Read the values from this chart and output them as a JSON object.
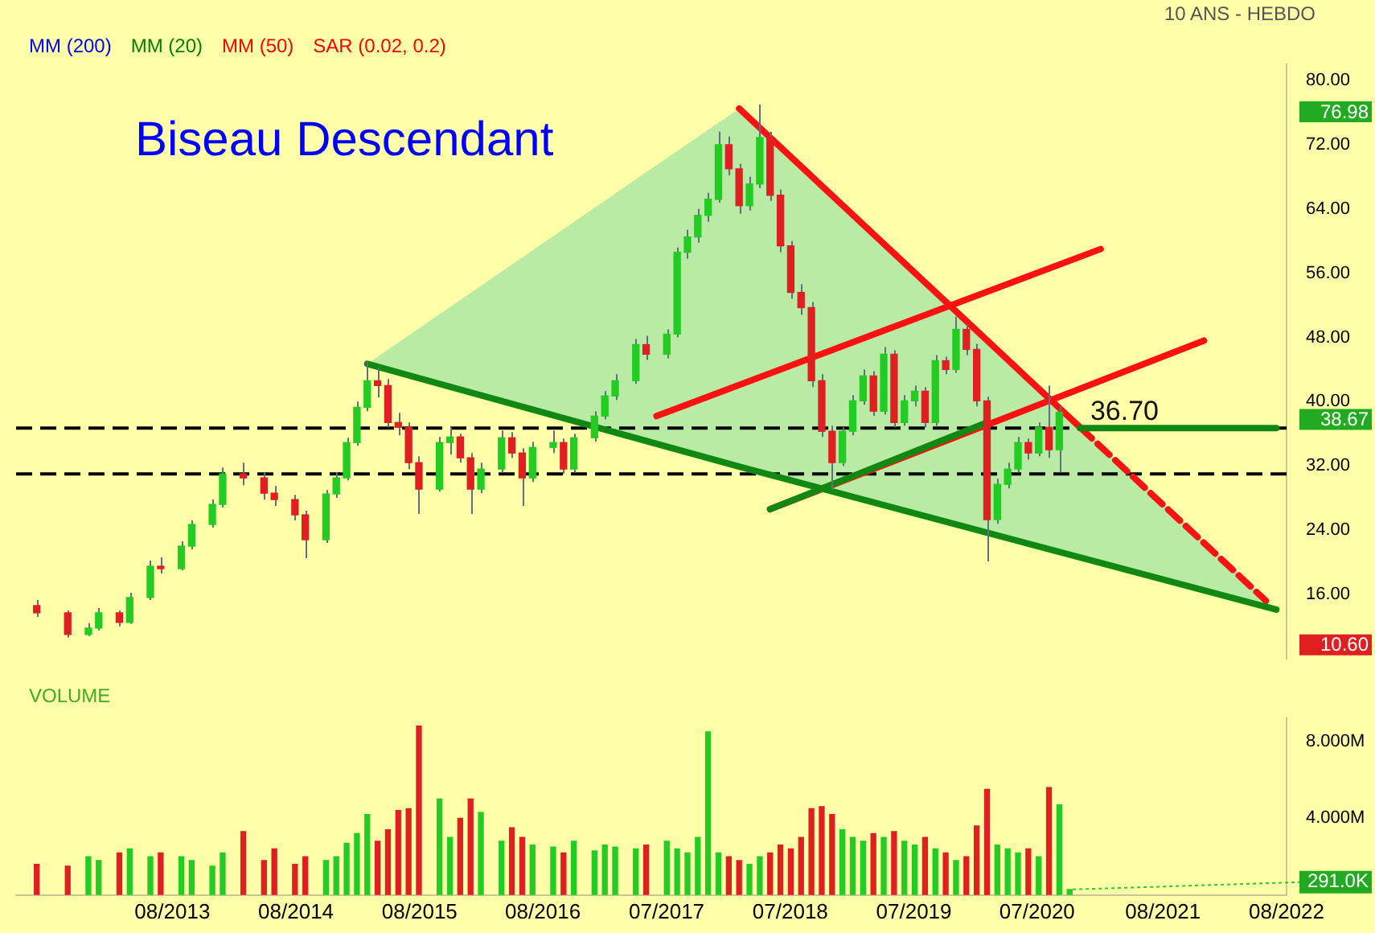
{
  "chart_data": [
    {
      "type": "candlestick",
      "title": "Biseau Descendant",
      "annotations": [
        "MM (200)",
        "MM (20)",
        "MM (50)",
        "SAR (0.02, 0.2)",
        "10 ANS - HEBDO",
        {
          "text": "36.70",
          "x": "2021-01",
          "y": 36.7
        }
      ],
      "y2lim": [
        8,
        82
      ],
      "y2ticks": [
        76.98,
        38.67,
        {
          "value": 10.6,
          "label": "10.60"
        }
      ],
      "x": [
        "2012-07",
        "2012-10",
        "2012-12",
        "2013-01",
        "2013-03",
        "2013-04",
        "2013-06",
        "2013-07",
        "2013-09",
        "2013-10",
        "2013-12",
        "2014-01",
        "2014-03",
        "2014-05",
        "2014-06",
        "2014-08",
        "2014-09",
        "2014-11",
        "2014-12",
        "2015-01",
        "2015-02",
        "2015-03",
        "2015-04",
        "2015-05",
        "2015-06",
        "2015-07",
        "2015-08",
        "2015-10",
        "2015-11",
        "2015-12",
        "2016-01",
        "2016-02",
        "2016-04",
        "2016-05",
        "2016-06",
        "2016-07",
        "2016-09",
        "2016-10",
        "2016-11",
        "2017-01",
        "2017-02",
        "2017-03",
        "2017-05",
        "2017-06",
        "2017-08",
        "2017-09",
        "2017-10",
        "2017-11",
        "2017-12",
        "2018-01",
        "2018-02",
        "2018-03",
        "2018-04",
        "2018-05",
        "2018-06",
        "2018-07",
        "2018-08",
        "2018-09",
        "2018-10",
        "2018-11",
        "2018-12",
        "2019-01",
        "2019-02",
        "2019-03",
        "2019-04",
        "2019-05",
        "2019-06",
        "2019-07",
        "2019-08",
        "2019-09",
        "2019-10",
        "2019-11",
        "2019-12",
        "2020-01",
        "2020-02",
        "2020-03",
        "2020-04",
        "2020-05",
        "2020-06",
        "2020-07",
        "2020-08",
        "2020-09",
        "2020-10"
      ],
      "ohlc": [
        [
          14.6,
          15.3,
          13.2,
          13.7
        ],
        [
          13.7,
          14.0,
          10.6,
          11.0
        ],
        [
          11.0,
          12.4,
          10.8,
          11.8
        ],
        [
          11.8,
          14.3,
          11.5,
          13.7
        ],
        [
          13.7,
          14.0,
          12.0,
          12.5
        ],
        [
          12.5,
          16.2,
          12.3,
          15.6
        ],
        [
          15.6,
          20.2,
          15.3,
          19.5
        ],
        [
          19.5,
          20.6,
          18.6,
          19.2
        ],
        [
          19.2,
          22.6,
          19.0,
          22.0
        ],
        [
          22.0,
          25.2,
          21.6,
          24.7
        ],
        [
          24.7,
          27.8,
          24.3,
          27.2
        ],
        [
          27.2,
          31.8,
          26.8,
          31.0
        ],
        [
          31.0,
          32.4,
          29.6,
          30.5
        ],
        [
          30.5,
          31.2,
          27.8,
          28.6
        ],
        [
          28.6,
          29.5,
          27.0,
          27.8
        ],
        [
          27.8,
          28.4,
          25.2,
          25.9
        ],
        [
          25.9,
          26.4,
          20.5,
          22.8
        ],
        [
          22.8,
          29.0,
          22.4,
          28.5
        ],
        [
          28.5,
          31.2,
          28.0,
          30.5
        ],
        [
          30.5,
          35.5,
          30.2,
          34.9
        ],
        [
          34.9,
          40.0,
          34.5,
          39.3
        ],
        [
          39.3,
          45.0,
          38.8,
          42.6
        ],
        [
          42.6,
          44.2,
          40.5,
          42.0
        ],
        [
          42.0,
          42.8,
          36.8,
          37.4
        ],
        [
          37.4,
          38.6,
          35.8,
          36.8
        ],
        [
          36.8,
          37.4,
          31.6,
          32.4
        ],
        [
          32.4,
          33.2,
          26.0,
          29.1
        ],
        [
          29.1,
          35.6,
          28.8,
          34.9
        ],
        [
          34.9,
          36.8,
          33.4,
          35.6
        ],
        [
          35.6,
          36.0,
          32.4,
          33.0
        ],
        [
          33.0,
          33.6,
          26.0,
          29.1
        ],
        [
          29.1,
          32.4,
          28.6,
          31.6
        ],
        [
          31.6,
          36.4,
          31.2,
          35.5
        ],
        [
          35.5,
          36.2,
          33.0,
          33.6
        ],
        [
          33.6,
          34.2,
          27.0,
          30.5
        ],
        [
          30.5,
          35.0,
          30.0,
          34.3
        ],
        [
          34.3,
          36.4,
          33.6,
          34.9
        ],
        [
          34.9,
          35.4,
          31.0,
          31.6
        ],
        [
          31.6,
          36.0,
          31.2,
          35.5
        ],
        [
          35.5,
          38.8,
          35.0,
          38.2
        ],
        [
          38.2,
          41.3,
          37.8,
          40.7
        ],
        [
          40.7,
          43.4,
          40.2,
          42.6
        ],
        [
          42.6,
          47.8,
          42.2,
          47.1
        ],
        [
          47.1,
          48.2,
          45.2,
          45.9
        ],
        [
          45.9,
          49.0,
          45.4,
          48.4
        ],
        [
          48.4,
          59.2,
          48.0,
          58.6
        ],
        [
          58.6,
          61.4,
          57.8,
          60.5
        ],
        [
          60.5,
          64.0,
          59.8,
          63.2
        ],
        [
          63.2,
          66.0,
          62.4,
          65.2
        ],
        [
          65.2,
          73.6,
          64.8,
          72.0
        ],
        [
          72.0,
          73.0,
          68.2,
          69.0
        ],
        [
          69.0,
          69.6,
          63.4,
          64.4
        ],
        [
          64.4,
          68.0,
          63.8,
          67.1
        ],
        [
          67.1,
          76.98,
          66.6,
          72.9
        ],
        [
          72.9,
          73.6,
          65.0,
          65.7
        ],
        [
          65.7,
          66.4,
          58.6,
          59.4
        ],
        [
          59.4,
          60.0,
          52.8,
          53.6
        ],
        [
          53.6,
          54.6,
          50.8,
          51.7
        ],
        [
          51.7,
          52.4,
          41.8,
          42.6
        ],
        [
          42.6,
          43.4,
          35.6,
          36.3
        ],
        [
          36.3,
          37.0,
          29.0,
          32.4
        ],
        [
          32.4,
          36.8,
          32.0,
          36.3
        ],
        [
          36.3,
          40.8,
          35.8,
          40.1
        ],
        [
          40.1,
          44.0,
          39.6,
          43.2
        ],
        [
          43.2,
          43.8,
          38.2,
          38.8
        ],
        [
          38.8,
          46.8,
          38.4,
          45.9
        ],
        [
          45.9,
          46.4,
          36.8,
          37.4
        ],
        [
          37.4,
          40.8,
          37.0,
          40.1
        ],
        [
          40.1,
          42.0,
          39.4,
          41.3
        ],
        [
          41.3,
          41.8,
          36.8,
          37.4
        ],
        [
          37.4,
          45.8,
          37.0,
          45.1
        ],
        [
          45.1,
          45.6,
          43.4,
          44.0
        ],
        [
          44.0,
          50.6,
          43.6,
          49.0
        ],
        [
          49.0,
          49.6,
          45.8,
          46.5
        ],
        [
          46.5,
          47.2,
          39.4,
          40.1
        ],
        [
          40.1,
          40.6,
          20.1,
          25.3
        ],
        [
          25.3,
          30.4,
          24.8,
          29.7
        ],
        [
          29.7,
          32.4,
          29.2,
          31.6
        ],
        [
          31.6,
          35.6,
          31.2,
          34.9
        ],
        [
          34.9,
          35.4,
          32.8,
          33.6
        ],
        [
          33.6,
          37.4,
          33.2,
          36.8
        ],
        [
          36.8,
          42.0,
          33.0,
          34.0
        ],
        [
          34.0,
          39.4,
          31.2,
          38.67
        ]
      ],
      "colors": [
        "#e02020",
        "#e02020",
        "#22cc22",
        "#22cc22",
        "#e02020",
        "#22cc22",
        "#22cc22",
        "#e02020",
        "#22cc22",
        "#22cc22",
        "#22cc22",
        "#22cc22",
        "#e02020",
        "#e02020",
        "#e02020",
        "#e02020",
        "#e02020",
        "#22cc22",
        "#22cc22",
        "#22cc22",
        "#22cc22",
        "#22cc22",
        "#e02020",
        "#e02020",
        "#e02020",
        "#e02020",
        "#e02020",
        "#22cc22",
        "#22cc22",
        "#e02020",
        "#e02020",
        "#22cc22",
        "#22cc22",
        "#e02020",
        "#e02020",
        "#22cc22",
        "#22cc22",
        "#e02020",
        "#22cc22",
        "#22cc22",
        "#22cc22",
        "#22cc22",
        "#22cc22",
        "#e02020",
        "#22cc22",
        "#22cc22",
        "#22cc22",
        "#22cc22",
        "#22cc22",
        "#22cc22",
        "#e02020",
        "#e02020",
        "#22cc22",
        "#22cc22",
        "#e02020",
        "#e02020",
        "#e02020",
        "#e02020",
        "#e02020",
        "#e02020",
        "#e02020",
        "#22cc22",
        "#22cc22",
        "#22cc22",
        "#e02020",
        "#22cc22",
        "#e02020",
        "#22cc22",
        "#22cc22",
        "#e02020",
        "#22cc22",
        "#e02020",
        "#22cc22",
        "#e02020",
        "#e02020",
        "#e02020",
        "#22cc22",
        "#22cc22",
        "#22cc22",
        "#e02020",
        "#22cc22",
        "#e02020",
        "#22cc22"
      ],
      "series": [
        {
          "type": "line",
          "color": "#ff1111",
          "x": [
            "2018-03",
            "2020-12"
          ],
          "values": [
            76.5,
            36.8
          ]
        },
        {
          "type": "line",
          "color": "#ff1111",
          "x": [
            "2020-12",
            "2022-06"
          ],
          "values": [
            36.8,
            15.2
          ],
          "line_style": "dashed"
        },
        {
          "type": "line",
          "color": "#ff1111",
          "x": [
            "2017-07",
            "2021-02"
          ],
          "values": [
            38.2,
            59.0
          ]
        },
        {
          "type": "line",
          "color": "#ff1111",
          "x": [
            "2018-06",
            "2021-12"
          ],
          "values": [
            26.6,
            47.6
          ]
        },
        {
          "type": "line",
          "color": "#118811",
          "x": [
            "2015-03",
            "2018-03",
            "2022-07"
          ],
          "values": [
            44.7,
            31.9,
            14.1
          ],
          "lower": [
            44.7,
            31.9,
            14.1
          ],
          "upper": [
            44.7,
            76.5,
            14.1
          ]
        },
        {
          "type": "line",
          "color": "#118811",
          "x": [
            "2018-06",
            "2020-03"
          ],
          "values": [
            26.6,
            37.4
          ]
        },
        {
          "type": "line",
          "color": "#118811",
          "x": [
            "2020-12",
            "2022-07"
          ],
          "values": [
            36.7,
            36.7
          ]
        }
      ],
      "ref_lines": [
        {
          "axis": "y",
          "value": 36.7,
          "color": "#000000",
          "line_style": "dashed"
        },
        {
          "axis": "y",
          "value": 31.0,
          "color": "#000000",
          "line_style": "dashed"
        }
      ],
      "xlim": [
        "2012-05",
        "2022-08"
      ],
      "ylim": [
        8,
        82
      ],
      "yticks": [
        {
          "value": 16,
          "label": "16.00"
        },
        {
          "value": 24,
          "label": "24.00"
        },
        {
          "value": 32,
          "label": "32.00"
        },
        {
          "value": 40,
          "label": "40.00"
        },
        {
          "value": 48,
          "label": "48.00"
        },
        {
          "value": 56,
          "label": "56.00"
        },
        {
          "value": 64,
          "label": "64.00"
        },
        {
          "value": 72,
          "label": "72.00"
        },
        {
          "value": 80,
          "label": "80.00"
        }
      ],
      "tick_labels": "y"
    },
    {
      "type": "bar",
      "annotations": [
        "VOLUME",
        {
          "text": "291.0K",
          "x": "2020-11",
          "y": 291000
        }
      ],
      "x": [
        "2012-07",
        "2012-10",
        "2012-12",
        "2013-01",
        "2013-03",
        "2013-04",
        "2013-06",
        "2013-07",
        "2013-09",
        "2013-10",
        "2013-12",
        "2014-01",
        "2014-03",
        "2014-05",
        "2014-06",
        "2014-08",
        "2014-09",
        "2014-11",
        "2014-12",
        "2015-01",
        "2015-02",
        "2015-03",
        "2015-04",
        "2015-05",
        "2015-06",
        "2015-07",
        "2015-08",
        "2015-10",
        "2015-11",
        "2015-12",
        "2016-01",
        "2016-02",
        "2016-04",
        "2016-05",
        "2016-06",
        "2016-07",
        "2016-09",
        "2016-10",
        "2016-11",
        "2017-01",
        "2017-02",
        "2017-03",
        "2017-05",
        "2017-06",
        "2017-08",
        "2017-09",
        "2017-10",
        "2017-11",
        "2017-12",
        "2018-01",
        "2018-02",
        "2018-03",
        "2018-04",
        "2018-05",
        "2018-06",
        "2018-07",
        "2018-08",
        "2018-09",
        "2018-10",
        "2018-11",
        "2018-12",
        "2019-01",
        "2019-02",
        "2019-03",
        "2019-04",
        "2019-05",
        "2019-06",
        "2019-07",
        "2019-08",
        "2019-09",
        "2019-10",
        "2019-11",
        "2019-12",
        "2020-01",
        "2020-02",
        "2020-03",
        "2020-04",
        "2020-05",
        "2020-06",
        "2020-07",
        "2020-08",
        "2020-09",
        "2020-10",
        "2020-11"
      ],
      "values": [
        1600000,
        1500000,
        2000000,
        1800000,
        2200000,
        2400000,
        2000000,
        2200000,
        2000000,
        1800000,
        1500000,
        2200000,
        3300000,
        1800000,
        2400000,
        1600000,
        2000000,
        1800000,
        2000000,
        2700000,
        3200000,
        4200000,
        2800000,
        3400000,
        4400000,
        4500000,
        8800000,
        5000000,
        3000000,
        4000000,
        5000000,
        4300000,
        2800000,
        3500000,
        3000000,
        2600000,
        2500000,
        2200000,
        2800000,
        2300000,
        2600000,
        2500000,
        2400000,
        2600000,
        2800000,
        2400000,
        2200000,
        3000000,
        8500000,
        2200000,
        2000000,
        1800000,
        1600000,
        2000000,
        2200000,
        2600000,
        2400000,
        3000000,
        4500000,
        4600000,
        4200000,
        3400000,
        3000000,
        2800000,
        3200000,
        3000000,
        3300000,
        2800000,
        2600000,
        3000000,
        2400000,
        2200000,
        1800000,
        2000000,
        3600000,
        5500000,
        2600000,
        2400000,
        2200000,
        2400000,
        2000000,
        5600000,
        4700000,
        291000
      ],
      "colors": [
        "#e02020",
        "#e02020",
        "#22cc22",
        "#22cc22",
        "#e02020",
        "#22cc22",
        "#22cc22",
        "#e02020",
        "#22cc22",
        "#22cc22",
        "#22cc22",
        "#22cc22",
        "#e02020",
        "#e02020",
        "#e02020",
        "#e02020",
        "#e02020",
        "#22cc22",
        "#22cc22",
        "#22cc22",
        "#22cc22",
        "#22cc22",
        "#e02020",
        "#e02020",
        "#e02020",
        "#e02020",
        "#e02020",
        "#22cc22",
        "#22cc22",
        "#e02020",
        "#e02020",
        "#22cc22",
        "#22cc22",
        "#e02020",
        "#e02020",
        "#22cc22",
        "#22cc22",
        "#e02020",
        "#22cc22",
        "#22cc22",
        "#22cc22",
        "#22cc22",
        "#22cc22",
        "#e02020",
        "#22cc22",
        "#22cc22",
        "#22cc22",
        "#22cc22",
        "#22cc22",
        "#22cc22",
        "#e02020",
        "#e02020",
        "#22cc22",
        "#22cc22",
        "#e02020",
        "#e02020",
        "#e02020",
        "#e02020",
        "#e02020",
        "#e02020",
        "#e02020",
        "#22cc22",
        "#22cc22",
        "#22cc22",
        "#e02020",
        "#22cc22",
        "#e02020",
        "#22cc22",
        "#22cc22",
        "#e02020",
        "#22cc22",
        "#e02020",
        "#22cc22",
        "#e02020",
        "#e02020",
        "#e02020",
        "#22cc22",
        "#22cc22",
        "#22cc22",
        "#e02020",
        "#22cc22",
        "#e02020",
        "#22cc22",
        "#22cc22"
      ],
      "xlim": [
        "2012-05",
        "2022-08"
      ],
      "xticks": [
        {
          "value": "2013-08-05",
          "label": "08/2013"
        },
        {
          "value": "2014-08-04",
          "label": "08/2014"
        },
        {
          "value": "2015-08-03",
          "label": "08/2015"
        },
        {
          "value": "2016-08-01",
          "label": "08/2016"
        },
        {
          "value": "2017-07-31",
          "label": "07/2017"
        },
        {
          "value": "2018-07-30",
          "label": "07/2018"
        },
        {
          "value": "2019-07-29",
          "label": "07/2019"
        },
        {
          "value": "2020-07-27",
          "label": "07/2020"
        },
        {
          "value": "2021-08-02",
          "label": "08/2021"
        },
        {
          "value": "2022-08-01",
          "label": "08/2022"
        }
      ],
      "ylim": [
        0,
        9200000
      ],
      "yticks": [
        {
          "value": 4000000,
          "label": "4.000M"
        },
        {
          "value": 8000000,
          "label": "8.000M"
        }
      ]
    }
  ]
}
